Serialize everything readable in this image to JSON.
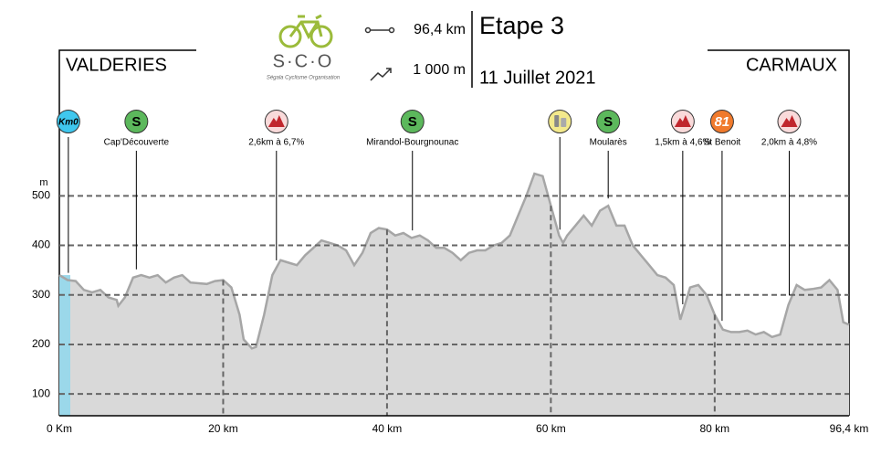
{
  "chart_data": {
    "type": "area",
    "title": "Etape 3",
    "subtitle": "11 Juillet 2021",
    "start": "VALDERIES",
    "finish": "CARMAUX",
    "distance": "96,4 km",
    "climbing": "1 000 m",
    "logo": "S·C·O",
    "logo_caption": "Ségala Cyclisme Organisation",
    "y_label": "m",
    "color": "#d9d9d9",
    "line_color": "#a6a6a6",
    "grid": true,
    "xlim": [
      0,
      96.4
    ],
    "ylim": [
      56,
      794
    ],
    "xticks": [
      {
        "value": 0,
        "label": "0 Km"
      },
      {
        "value": 20,
        "label": "20 km"
      },
      {
        "value": 40,
        "label": "40 km"
      },
      {
        "value": 60,
        "label": "60 km"
      },
      {
        "value": 80,
        "label": "80 km"
      },
      {
        "value": 96.4,
        "label": "96,4 km"
      }
    ],
    "yticks": [
      100,
      200,
      300,
      400,
      500
    ],
    "x": [
      0,
      1,
      2,
      3,
      4,
      5,
      6,
      7,
      7.2,
      8,
      9,
      10,
      11,
      12,
      13,
      14,
      15,
      16,
      18,
      19,
      20,
      21,
      22,
      22.5,
      23.5,
      24,
      25,
      26,
      27,
      28,
      29,
      30,
      31,
      32,
      33,
      34,
      35,
      36,
      37,
      38,
      39,
      40,
      41,
      42,
      43,
      44,
      45,
      46,
      47,
      48,
      49,
      50,
      51,
      52,
      53,
      54,
      55,
      56,
      57,
      58,
      59,
      60,
      61,
      61.5,
      62,
      63,
      64,
      65,
      66,
      67,
      68,
      69,
      70,
      71,
      72,
      73,
      74,
      75,
      75.8,
      77,
      78,
      79,
      80,
      81,
      82,
      83,
      84,
      85,
      86,
      87,
      88,
      89,
      90,
      91,
      92,
      93,
      94,
      95,
      95.7,
      96.4
    ],
    "values": [
      340,
      330,
      328,
      310,
      305,
      310,
      295,
      290,
      278,
      295,
      335,
      340,
      335,
      340,
      325,
      335,
      340,
      325,
      322,
      328,
      330,
      315,
      260,
      210,
      192,
      195,
      260,
      340,
      370,
      365,
      360,
      380,
      395,
      410,
      405,
      400,
      390,
      360,
      385,
      425,
      435,
      432,
      420,
      425,
      415,
      420,
      410,
      395,
      395,
      385,
      370,
      385,
      390,
      390,
      400,
      405,
      420,
      460,
      500,
      545,
      540,
      480,
      420,
      405,
      420,
      440,
      460,
      440,
      470,
      480,
      440,
      440,
      400,
      380,
      360,
      340,
      335,
      320,
      250,
      315,
      320,
      300,
      260,
      230,
      225,
      225,
      228,
      220,
      225,
      215,
      220,
      280,
      320,
      310,
      312,
      315,
      330,
      310,
      245,
      240
    ],
    "annotations": [
      {
        "km": 1.1,
        "marker": {
          "text": "Km0",
          "color": "#3fc7ee"
        }
      },
      {
        "km": 9.4,
        "label": "Cap'Découverte",
        "marker": {
          "text": "S",
          "color": "#5cb85c"
        }
      },
      {
        "km": 26.5,
        "label": "2,6km à 6,7%",
        "marker": {
          "shape": "mountain",
          "color": "#f9dada"
        }
      },
      {
        "km": 43.1,
        "label": "Mirandol-Bourgnounac",
        "marker": {
          "text": "S",
          "color": "#5cb85c"
        }
      },
      {
        "km": 61.1,
        "marker": {
          "shape": "feed",
          "color": "#f3e98c"
        }
      },
      {
        "km": 67.0,
        "label": "Moularès",
        "marker": {
          "text": "S",
          "color": "#5cb85c"
        }
      },
      {
        "km": 76.1,
        "label": "1,5km à 4,6%",
        "marker": {
          "shape": "mountain",
          "color": "#f9dada"
        }
      },
      {
        "km": 80.9,
        "label": "St Benoit",
        "marker": {
          "text": "81",
          "color": "#f07a2c"
        }
      },
      {
        "km": 89.1,
        "label": "2,0km à 4,8%",
        "marker": {
          "shape": "mountain",
          "color": "#f9dada"
        }
      }
    ]
  }
}
